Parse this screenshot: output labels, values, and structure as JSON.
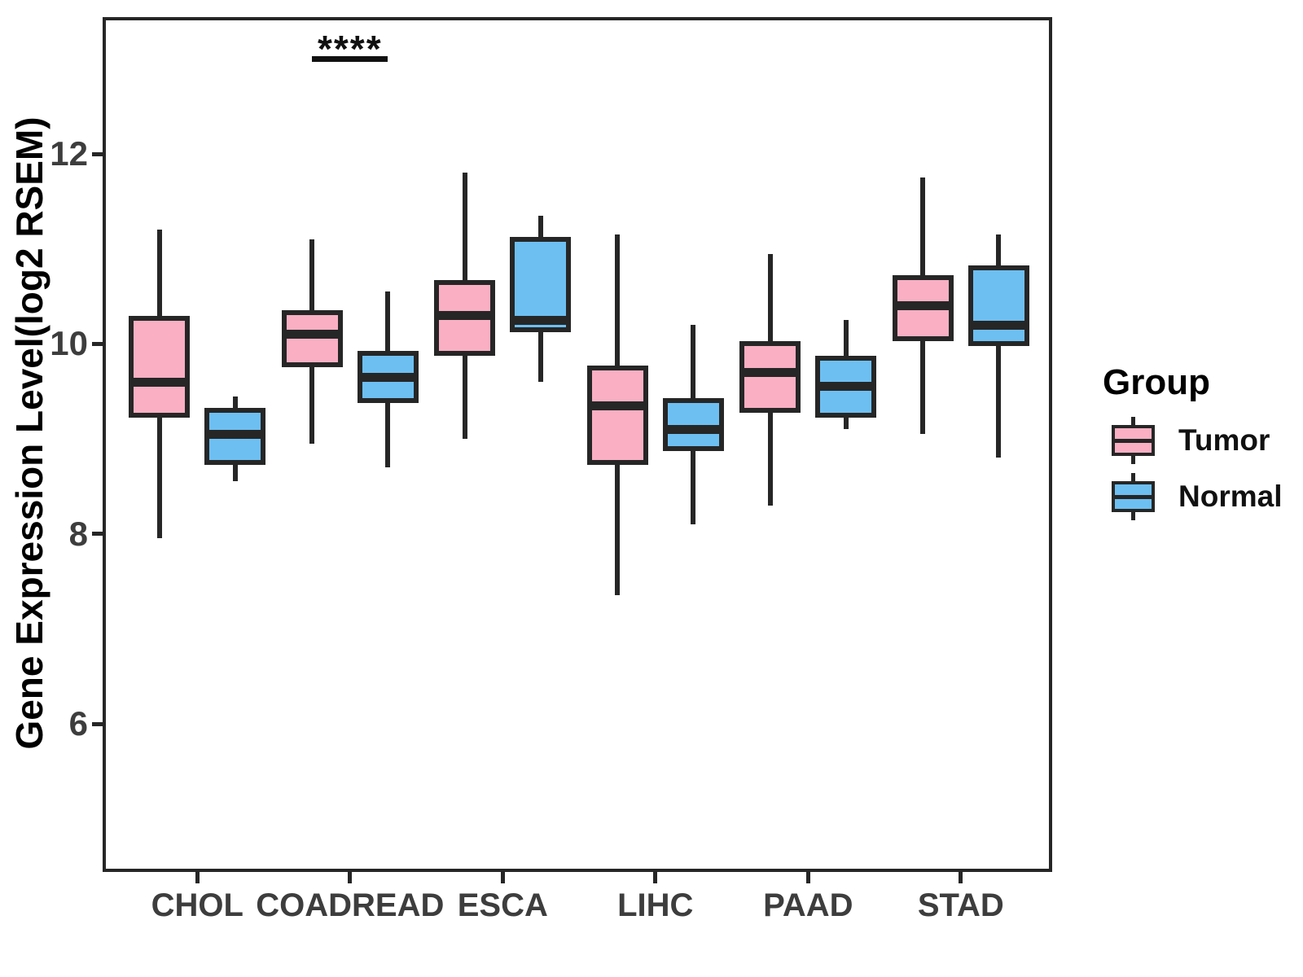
{
  "figure": {
    "background_color": "#ffffff",
    "panel_border_color": "#262626",
    "axis_text_color": "#3d3d3d",
    "legend": {
      "title": "Group"
    }
  },
  "chart_data": {
    "type": "boxplot",
    "title": "",
    "xlabel": "",
    "ylabel": "Gene Expression Level(log2 RSEM)",
    "categories": [
      "CHOL",
      "COADREAD",
      "ESCA",
      "LIHC",
      "PAAD",
      "STAD"
    ],
    "yticks": [
      6,
      8,
      10,
      12
    ],
    "ylim": [
      4.45,
      13.4
    ],
    "grid": false,
    "legend_position": "right",
    "line_color": "#262626",
    "series": [
      {
        "name": "Tumor",
        "color": "#FAAFC3",
        "boxes": [
          {
            "category": "CHOL",
            "min": 7.95,
            "q1": 9.25,
            "median": 9.6,
            "q3": 10.27,
            "max": 11.2
          },
          {
            "category": "COADREAD",
            "min": 8.95,
            "q1": 9.78,
            "median": 10.1,
            "q3": 10.33,
            "max": 11.1
          },
          {
            "category": "ESCA",
            "min": 9.0,
            "q1": 9.9,
            "median": 10.3,
            "q3": 10.65,
            "max": 11.8
          },
          {
            "category": "LIHC",
            "min": 7.35,
            "q1": 8.75,
            "median": 9.35,
            "q3": 9.75,
            "max": 11.15
          },
          {
            "category": "PAAD",
            "min": 8.3,
            "q1": 9.3,
            "median": 9.7,
            "q3": 10.0,
            "max": 10.95
          },
          {
            "category": "STAD",
            "min": 9.05,
            "q1": 10.05,
            "median": 10.4,
            "q3": 10.7,
            "max": 11.75
          }
        ]
      },
      {
        "name": "Normal",
        "color": "#6DBFF2",
        "boxes": [
          {
            "category": "CHOL",
            "min": 8.55,
            "q1": 8.75,
            "median": 9.05,
            "q3": 9.3,
            "max": 9.45
          },
          {
            "category": "COADREAD",
            "min": 8.7,
            "q1": 9.4,
            "median": 9.65,
            "q3": 9.9,
            "max": 10.55
          },
          {
            "category": "ESCA",
            "min": 9.6,
            "q1": 10.15,
            "median": 10.25,
            "q3": 11.1,
            "max": 11.35
          },
          {
            "category": "LIHC",
            "min": 8.1,
            "q1": 8.9,
            "median": 9.1,
            "q3": 9.4,
            "max": 10.2
          },
          {
            "category": "PAAD",
            "min": 9.1,
            "q1": 9.25,
            "median": 9.55,
            "q3": 9.85,
            "max": 10.25
          },
          {
            "category": "STAD",
            "min": 8.8,
            "q1": 10.0,
            "median": 10.2,
            "q3": 10.8,
            "max": 11.15
          }
        ]
      }
    ],
    "annotations": [
      {
        "text": "****",
        "category": "COADREAD",
        "y": 13.0,
        "span": "tumor-to-normal"
      }
    ]
  }
}
